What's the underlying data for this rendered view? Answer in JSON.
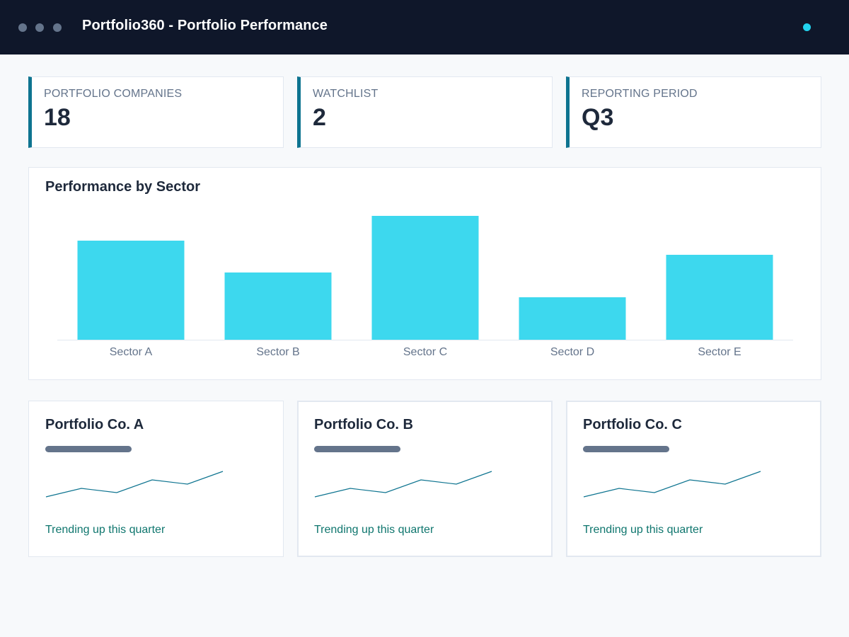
{
  "window": {
    "title": "Portfolio360 - Portfolio Performance"
  },
  "stats": [
    {
      "label": "PORTFOLIO COMPANIES",
      "value": "18"
    },
    {
      "label": "WATCHLIST",
      "value": "2"
    },
    {
      "label": "REPORTING PERIOD",
      "value": "Q3"
    }
  ],
  "chart": {
    "title": "Performance by Sector"
  },
  "chart_data": {
    "type": "bar",
    "title": "Performance by Sector",
    "categories": [
      "Sector A",
      "Sector B",
      "Sector C",
      "Sector D",
      "Sector E"
    ],
    "values": [
      140,
      95,
      175,
      60,
      120
    ],
    "ylim": [
      0,
      175
    ],
    "grid": false,
    "bar_color": "#3dd8ee"
  },
  "companies": [
    {
      "name": "Portfolio Co. A",
      "trend": "Trending up this quarter",
      "sparkline": [
        2,
        4,
        3,
        6,
        5,
        8
      ]
    },
    {
      "name": "Portfolio Co. B",
      "trend": "Trending up this quarter",
      "sparkline": [
        2,
        4,
        3,
        6,
        5,
        8
      ]
    },
    {
      "name": "Portfolio Co. C",
      "trend": "Trending up this quarter",
      "sparkline": [
        2,
        4,
        3,
        6,
        5,
        8
      ]
    }
  ],
  "colors": {
    "header_bg": "#0f172a",
    "accent": "#0e7490",
    "status": "#22d3ee",
    "trend_text": "#0f766e"
  }
}
